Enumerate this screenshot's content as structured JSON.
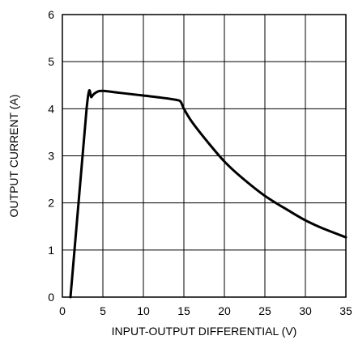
{
  "chart_data": {
    "type": "line",
    "title": "",
    "xlabel": "INPUT-OUTPUT DIFFERENTIAL (V)",
    "ylabel": "OUTPUT CURRENT (A)",
    "xlim": [
      0,
      35
    ],
    "ylim": [
      0,
      6
    ],
    "xticks": [
      "0",
      "5",
      "10",
      "15",
      "20",
      "25",
      "30",
      "35"
    ],
    "yticks": [
      "0",
      "1",
      "2",
      "3",
      "4",
      "5",
      "6"
    ],
    "grid": true,
    "series": [
      {
        "x": [
          1.0,
          3.0,
          3.6,
          4.2,
          5.0,
          7.0,
          10.0,
          12.0,
          14.0,
          14.6,
          15.0,
          16.0,
          18.0,
          20.0,
          22.0,
          25.0,
          28.0,
          30.0,
          32.0,
          35.0
        ],
        "y": [
          0.0,
          4.02,
          4.25,
          4.35,
          4.38,
          4.34,
          4.28,
          4.24,
          4.19,
          4.15,
          4.0,
          3.72,
          3.28,
          2.88,
          2.56,
          2.15,
          1.83,
          1.63,
          1.47,
          1.27
        ]
      }
    ]
  }
}
